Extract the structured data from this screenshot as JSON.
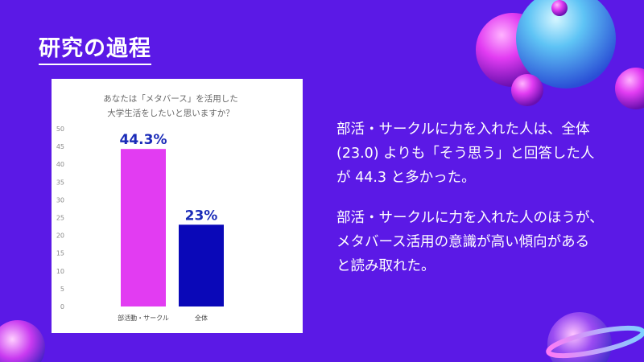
{
  "slide": {
    "title": "研究の過程",
    "paragraphs": [
      [
        "部活・サークルに力を入れた人は、全体",
        "(23.0) よりも「そう思う」と回答した人",
        "が 44.3 と多かった。"
      ],
      [
        "部活・サークルに力を入れた人のほうが、",
        "メタバース活用の意識が高い傾向がある",
        "と読み取れた。"
      ]
    ]
  },
  "colors": {
    "background": "#5b19e6",
    "bar_club": "#e23cf2",
    "bar_total": "#0a08b8",
    "data_label": "#1a2bb8"
  },
  "chart_data": {
    "type": "bar",
    "title": [
      "あなたは「メタバース」を活用した",
      "大学生活をしたいと思いますか？"
    ],
    "categories": [
      "部活動・サークル",
      "全体"
    ],
    "values": [
      44.3,
      23
    ],
    "data_labels": [
      "44.3%",
      "23%"
    ],
    "ylim": [
      0,
      50
    ],
    "yticks": [
      0,
      5,
      10,
      15,
      20,
      25,
      30,
      35,
      40,
      45,
      50
    ],
    "grid": false
  }
}
